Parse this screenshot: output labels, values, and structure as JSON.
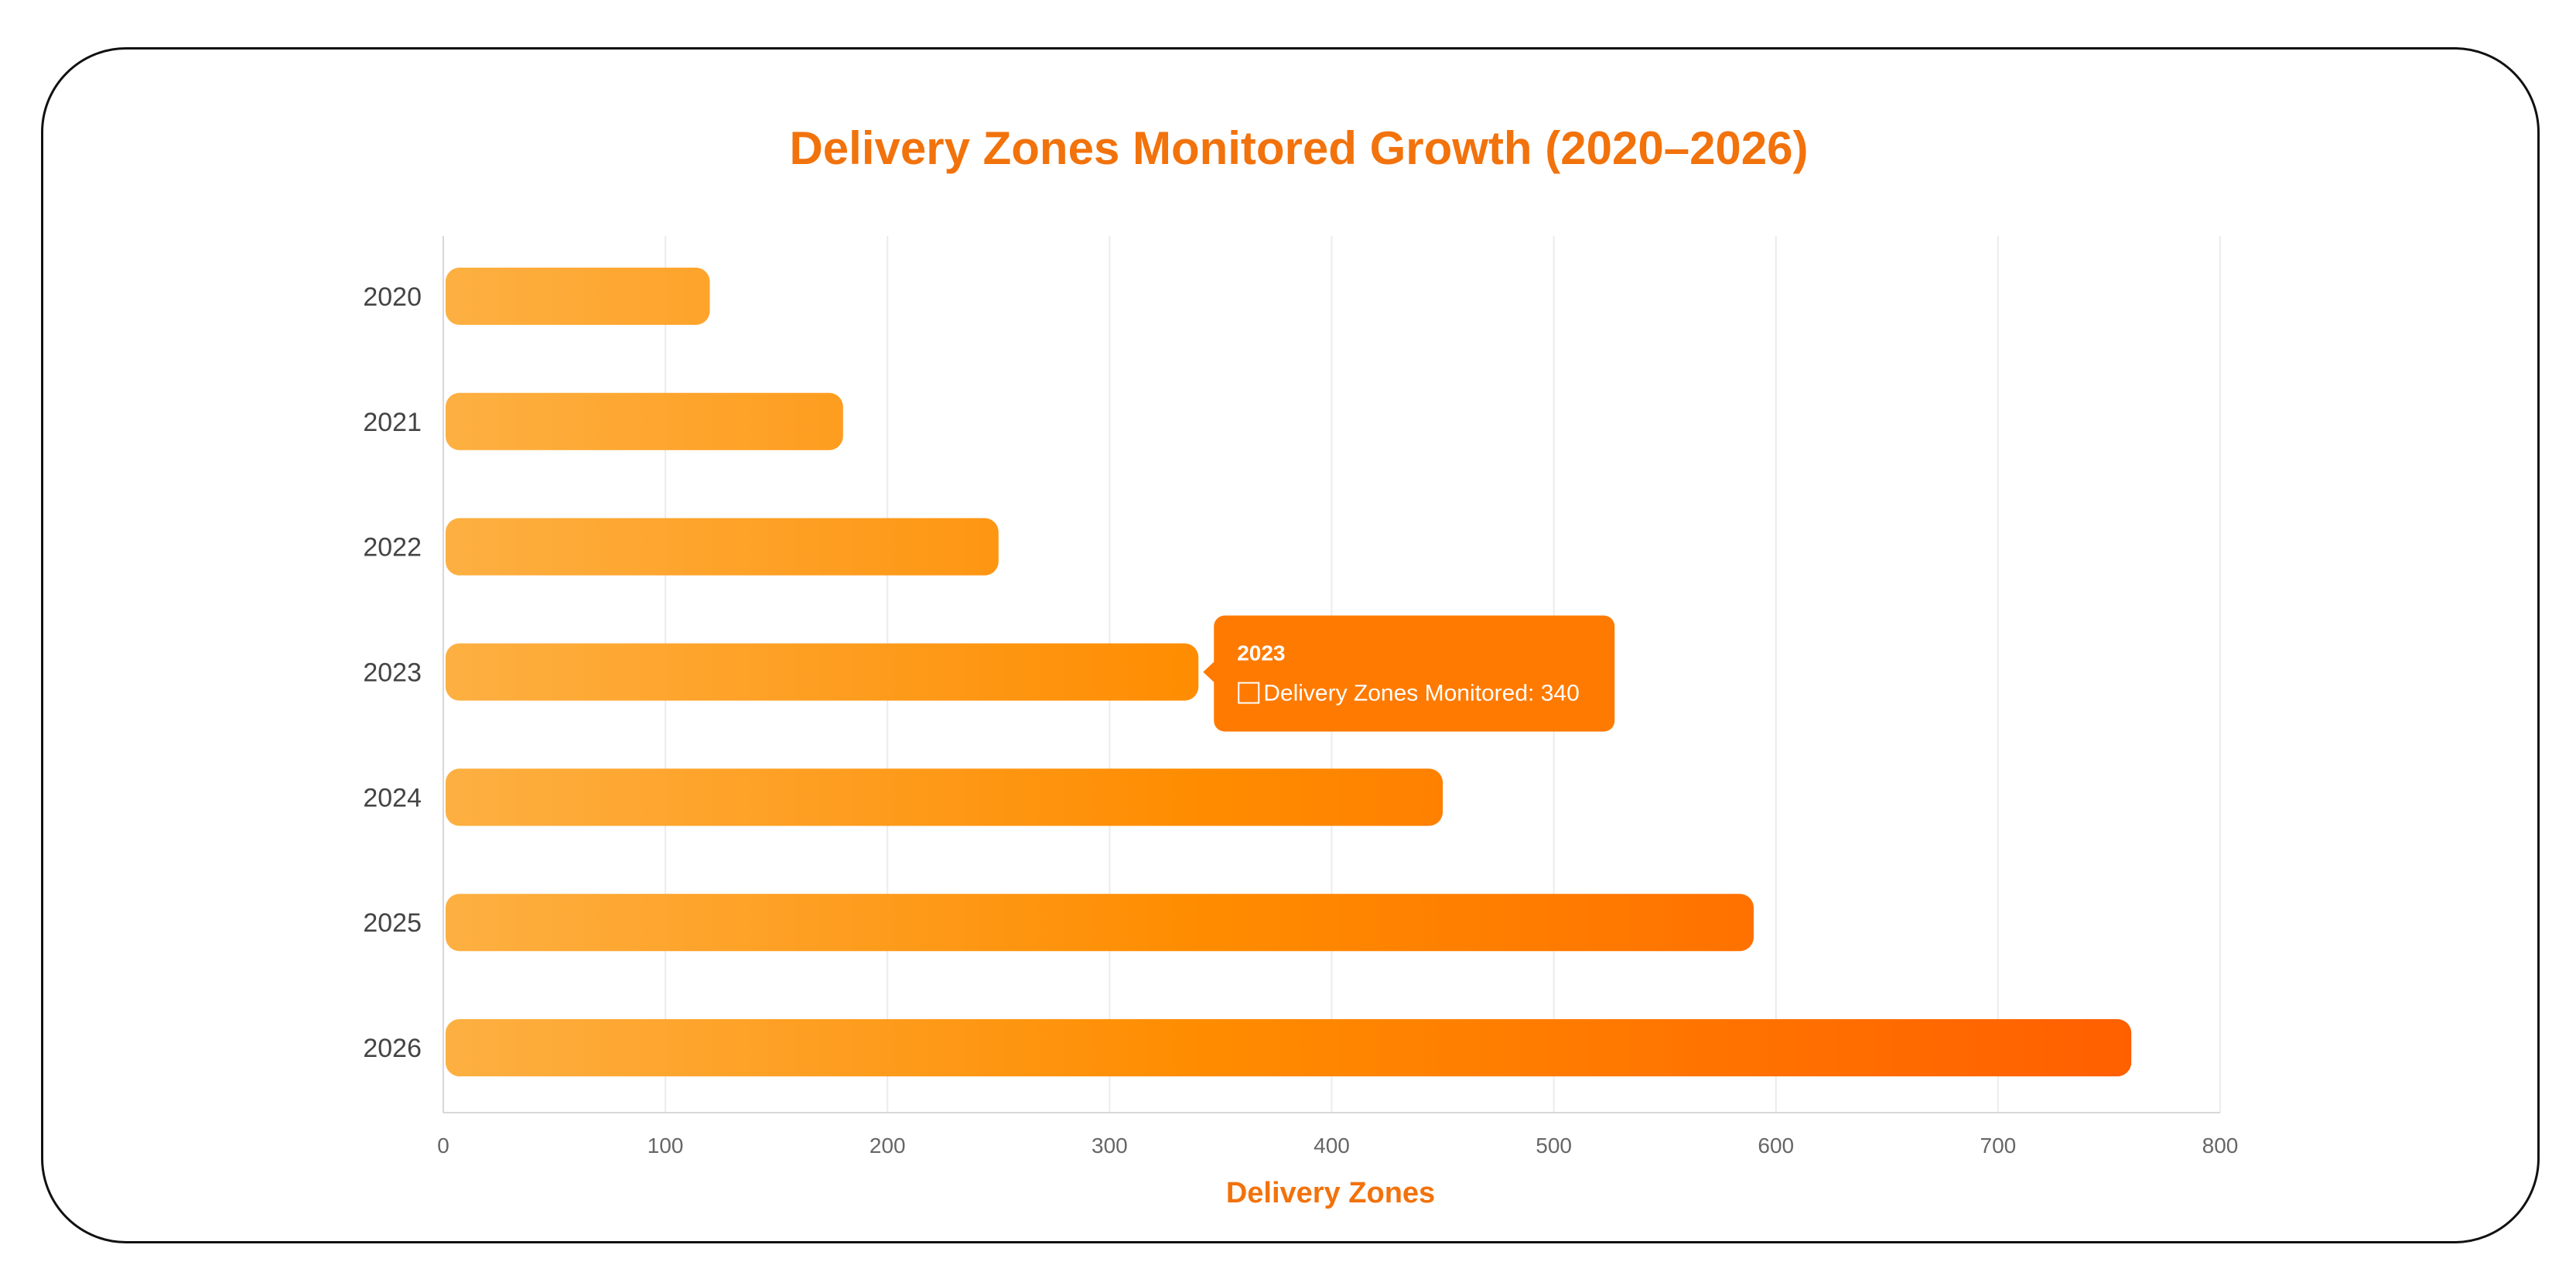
{
  "colors": {
    "accent": "#F2720C",
    "bar_start": "#FDB042",
    "bar_mid": "#FF8C00",
    "bar_end": "#FF5F00",
    "tooltip_bg": "#FF7A00",
    "grid": "#ECECEC",
    "axis": "#D8D8D8"
  },
  "chart_data": {
    "type": "bar",
    "orientation": "horizontal",
    "title": "Delivery Zones Monitored Growth (2020–2026)",
    "xlabel": "Delivery Zones",
    "ylabel": "",
    "xlim": [
      0,
      800
    ],
    "x_ticks": [
      0,
      100,
      200,
      300,
      400,
      500,
      600,
      700,
      800
    ],
    "grid": true,
    "categories": [
      "2020",
      "2021",
      "2022",
      "2023",
      "2024",
      "2025",
      "2026"
    ],
    "series": [
      {
        "name": "Delivery Zones Monitored",
        "values": [
          120,
          180,
          250,
          340,
          450,
          590,
          760
        ]
      }
    ],
    "tooltip": {
      "title": "2023",
      "label": "Delivery Zones Monitored: 340",
      "category_index": 3
    }
  }
}
